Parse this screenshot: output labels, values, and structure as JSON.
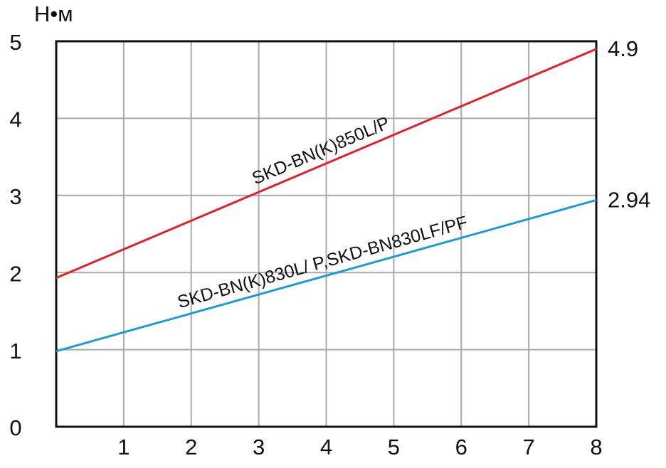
{
  "chart_data": {
    "type": "line",
    "y_label": "Н•м",
    "x": [
      0,
      8
    ],
    "xlim": [
      0,
      8
    ],
    "xticks": [
      1,
      2,
      3,
      4,
      5,
      6,
      7,
      8
    ],
    "ylim": [
      0,
      5
    ],
    "yticks": [
      0,
      1,
      2,
      3,
      4,
      5
    ],
    "grid": true,
    "series": [
      {
        "name": "SKD-BN(K)850L/P",
        "color": "#e2202b",
        "values": [
          1.93,
          4.9
        ]
      },
      {
        "name": "SKD-BN(K)830L/ P,SKD-BN830LF/PF",
        "color": "#1e9ad6",
        "values": [
          0.98,
          2.94
        ]
      }
    ]
  }
}
